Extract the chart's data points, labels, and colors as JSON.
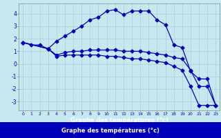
{
  "title": "",
  "xlabel": "Graphe des températures (°c)",
  "ylabel": "",
  "background_color": "#c8e8f0",
  "plot_bg_color": "#c8e8f0",
  "line_color": "#0000bb",
  "grid_color": "#aaccdd",
  "footer_color": "#0000bb",
  "xlim": [
    -0.5,
    23.5
  ],
  "ylim": [
    -3.7,
    4.8
  ],
  "yticks": [
    -3,
    -2,
    -1,
    0,
    1,
    2,
    3,
    4
  ],
  "xticks": [
    0,
    1,
    2,
    3,
    4,
    5,
    6,
    7,
    8,
    9,
    10,
    11,
    12,
    13,
    14,
    15,
    16,
    17,
    18,
    19,
    20,
    21,
    22,
    23
  ],
  "line1_x": [
    0,
    1,
    2,
    3,
    4,
    5,
    6,
    7,
    8,
    9,
    10,
    11,
    12,
    13,
    14,
    15,
    16,
    17,
    18,
    19,
    20,
    21,
    22,
    23
  ],
  "line1_y": [
    1.7,
    1.5,
    1.5,
    1.2,
    1.8,
    2.2,
    2.6,
    3.0,
    3.5,
    3.7,
    4.2,
    4.3,
    3.9,
    4.2,
    4.2,
    4.2,
    3.5,
    3.1,
    1.5,
    1.3,
    -0.6,
    -1.2,
    -1.2,
    -3.3
  ],
  "line2_x": [
    0,
    3,
    4,
    5,
    6,
    7,
    8,
    9,
    10,
    11,
    12,
    13,
    14,
    15,
    16,
    17,
    18,
    19,
    20,
    21,
    22,
    23
  ],
  "line2_y": [
    1.7,
    1.2,
    0.7,
    0.9,
    1.0,
    1.0,
    1.1,
    1.1,
    1.1,
    1.1,
    1.0,
    1.0,
    1.0,
    0.9,
    0.8,
    0.7,
    0.5,
    0.4,
    -0.5,
    -1.8,
    -1.8,
    -3.3
  ],
  "line3_x": [
    0,
    3,
    4,
    5,
    6,
    7,
    8,
    9,
    10,
    11,
    12,
    13,
    14,
    15,
    16,
    17,
    18,
    19,
    20,
    21,
    22,
    23
  ],
  "line3_y": [
    1.7,
    1.2,
    0.6,
    0.7,
    0.7,
    0.7,
    0.7,
    0.7,
    0.6,
    0.6,
    0.5,
    0.4,
    0.4,
    0.3,
    0.2,
    0.1,
    -0.2,
    -0.5,
    -1.8,
    -3.3,
    -3.3,
    -3.3
  ]
}
